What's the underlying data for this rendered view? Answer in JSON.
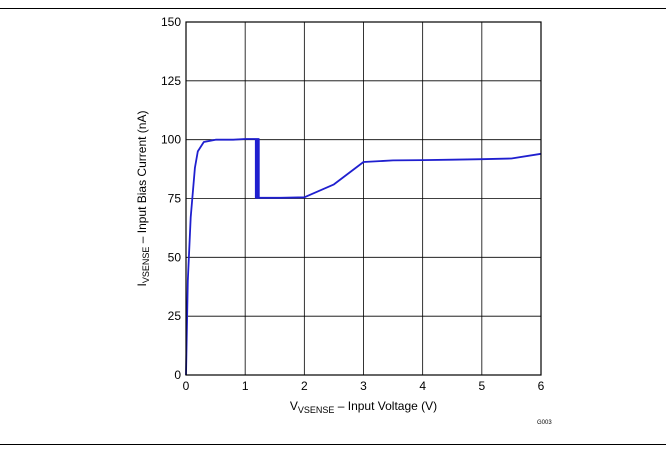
{
  "chart_data": {
    "type": "line",
    "xlabel": {
      "main": "V",
      "sub": "VSENSE",
      "rest": " – Input Voltage (V)"
    },
    "ylabel": {
      "main": "I",
      "sub": "VSENSE",
      "rest": " – Input Bias Current (nA)"
    },
    "xlim": [
      0,
      6
    ],
    "ylim": [
      0,
      150
    ],
    "xticks": [
      0,
      1,
      2,
      3,
      4,
      5,
      6
    ],
    "yticks": [
      0,
      25,
      50,
      75,
      100,
      125,
      150
    ],
    "grid": true,
    "series_color": "#1f1fcf",
    "figure_id": "G003",
    "series": [
      {
        "x": [
          0,
          0.03,
          0.08,
          0.15,
          0.2,
          0.3,
          0.5,
          0.8,
          1.0,
          1.2,
          1.2,
          1.23,
          1.23,
          1.18,
          1.18,
          1.6,
          2.0,
          2.5,
          3.0,
          3.5,
          4.0,
          4.5,
          5.0,
          5.5,
          6.0
        ],
        "y": [
          0,
          40,
          67,
          88,
          95,
          99,
          100,
          100,
          100.3,
          100.3,
          75.3,
          75.3,
          100.3,
          100.3,
          75.3,
          75.3,
          75.5,
          81,
          90.5,
          91.2,
          91.3,
          91.5,
          91.7,
          92,
          94
        ]
      }
    ]
  }
}
